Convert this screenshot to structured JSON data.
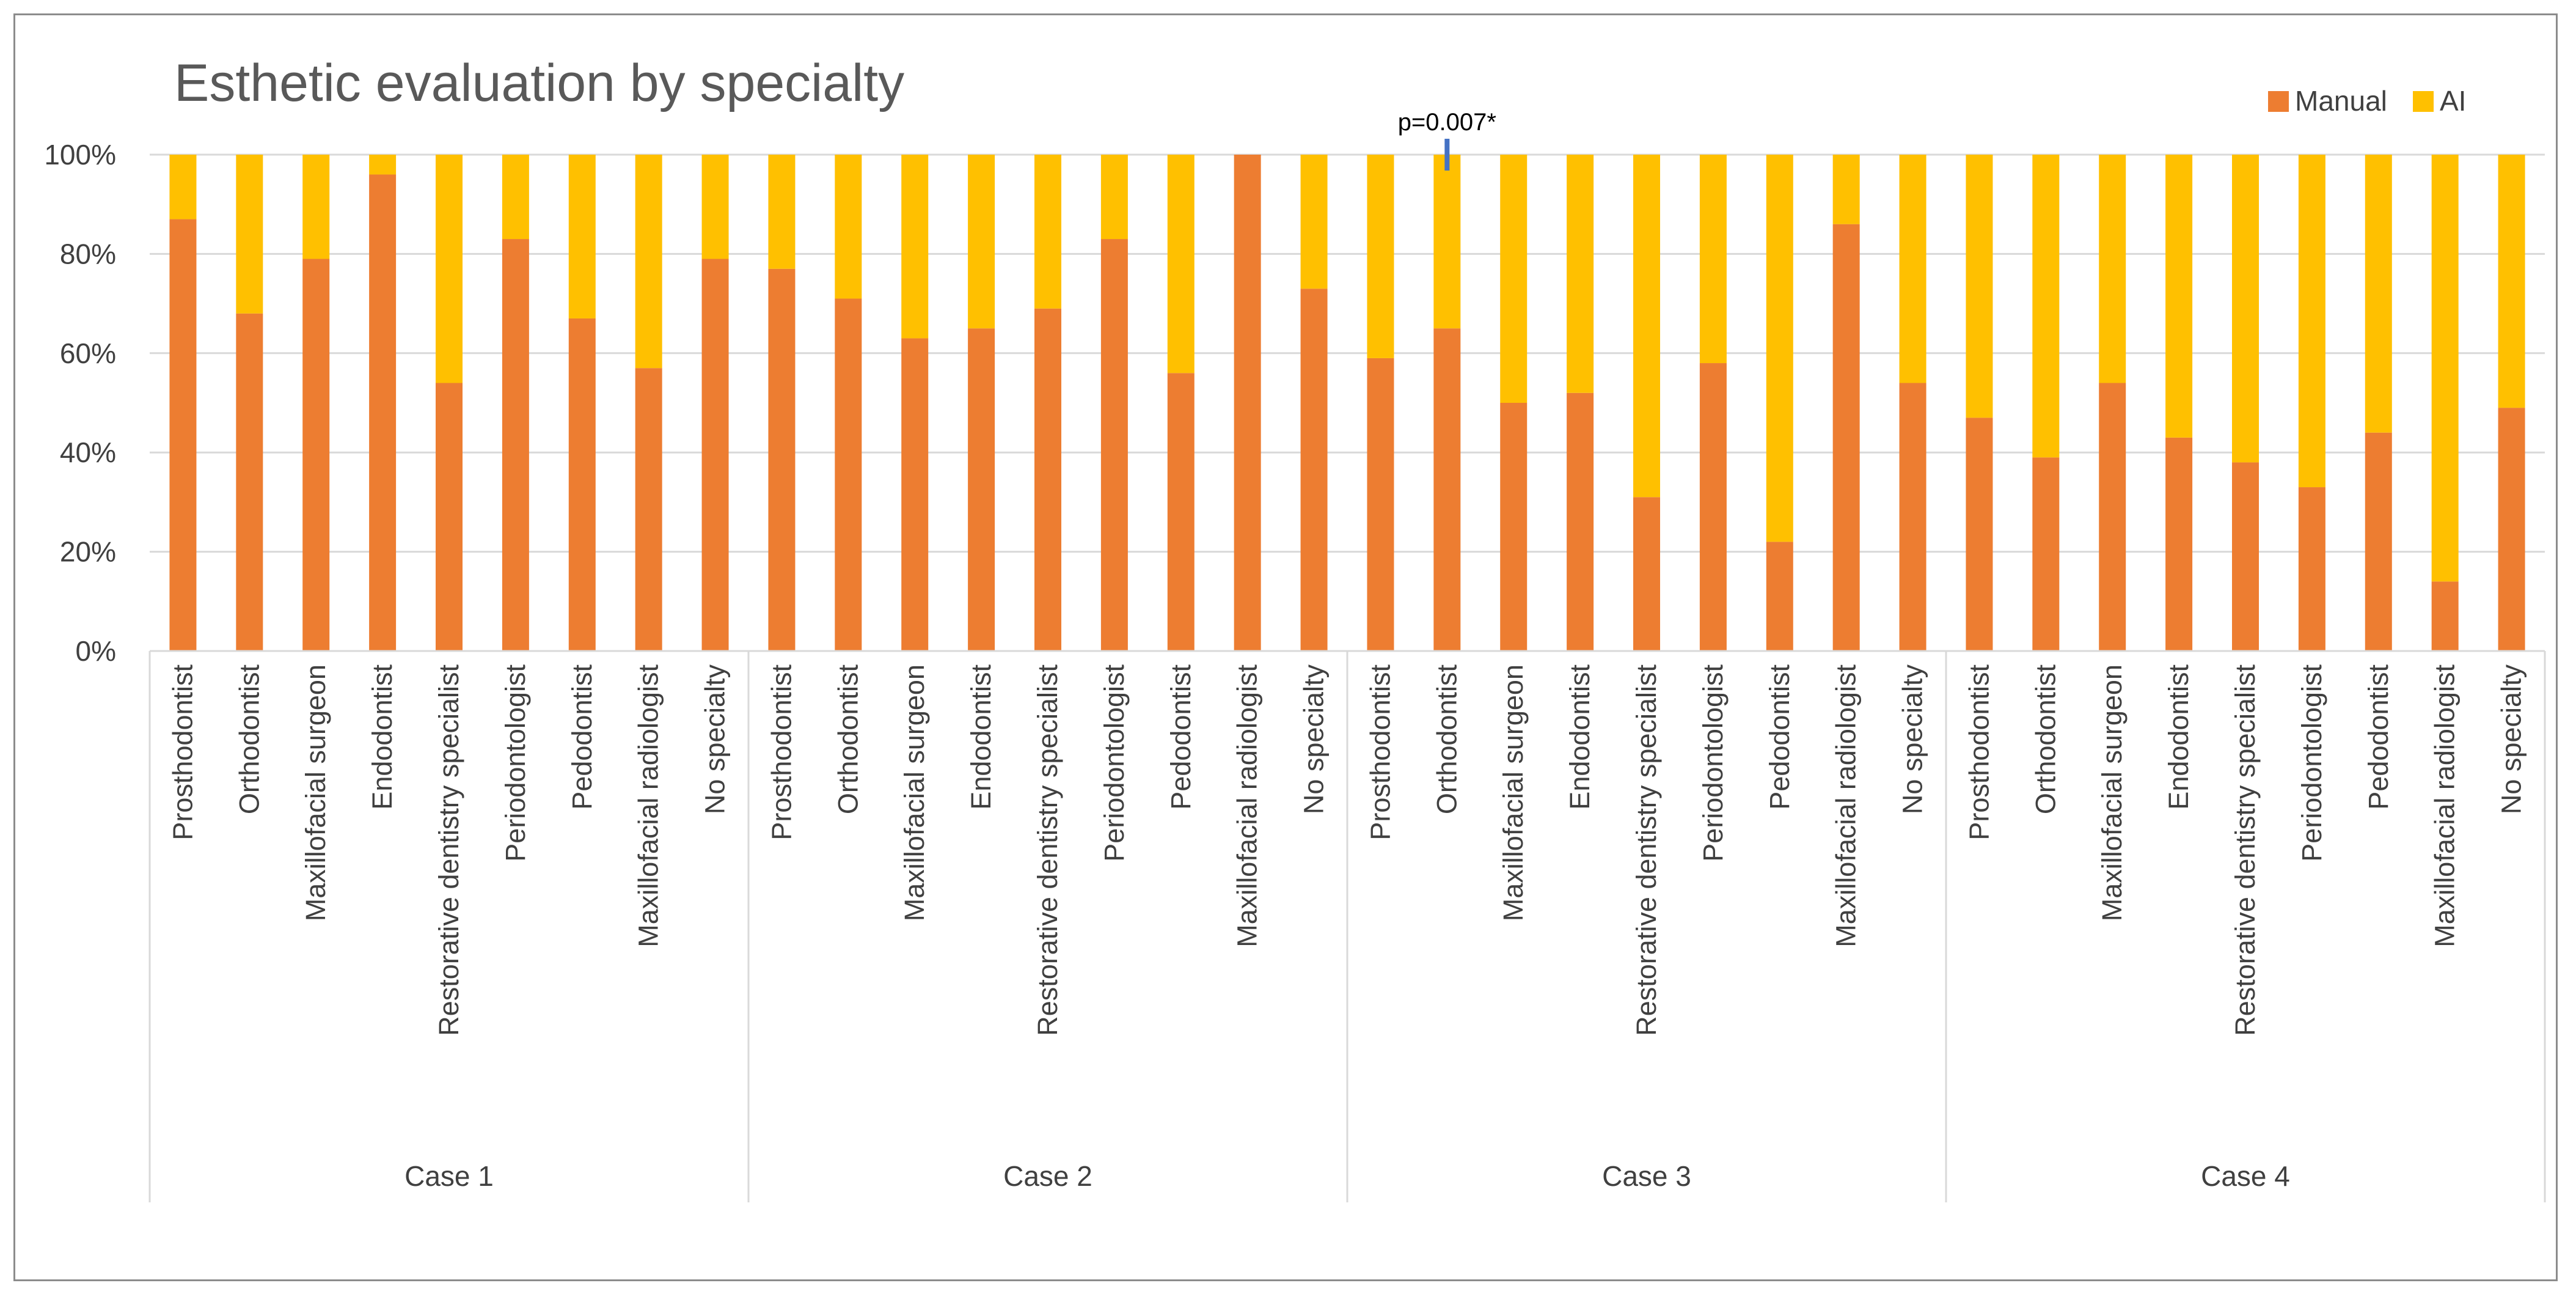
{
  "chart_data": {
    "type": "bar",
    "stacked": true,
    "title": "Esthetic evaluation by specialty",
    "ylim": [
      0,
      100
    ],
    "yticks": [
      "0%",
      "20%",
      "40%",
      "60%",
      "80%",
      "100%"
    ],
    "grid": true,
    "legend_position": "top-right",
    "colors": {
      "Manual": "#ED7D31",
      "AI": "#FFC000",
      "annotation_marker": "#4472C4"
    },
    "groups": [
      {
        "label": "Case 1",
        "categories": [
          "Prosthodontist",
          "Orthodontist",
          "Maxillofacial surgeon",
          "Endodontist",
          "Restorative dentistry specialist",
          "Periodontologist",
          "Pedodontist",
          "Maxillofacial radiologist",
          "No specialty"
        ],
        "manual": [
          87,
          68,
          79,
          96,
          54,
          83,
          67,
          57,
          79
        ]
      },
      {
        "label": "Case 2",
        "categories": [
          "Prosthodontist",
          "Orthodontist",
          "Maxillofacial surgeon",
          "Endodontist",
          "Restorative dentistry specialist",
          "Periodontologist",
          "Pedodontist",
          "Maxillofacial radiologist",
          "No specialty"
        ],
        "manual": [
          77,
          71,
          63,
          65,
          69,
          83,
          56,
          100,
          73
        ]
      },
      {
        "label": "Case 3",
        "categories": [
          "Prosthodontist",
          "Orthodontist",
          "Maxillofacial surgeon",
          "Endodontist",
          "Restorative dentistry specialist",
          "Periodontologist",
          "Pedodontist",
          "Maxillofacial radiologist",
          "No specialty"
        ],
        "manual": [
          59,
          65,
          50,
          52,
          31,
          58,
          22,
          86,
          54
        ]
      },
      {
        "label": "Case 4",
        "categories": [
          "Prosthodontist",
          "Orthodontist",
          "Maxillofacial surgeon",
          "Endodontist",
          "Restorative dentistry specialist",
          "Periodontologist",
          "Pedodontist",
          "Maxillofacial radiologist",
          "No specialty"
        ],
        "manual": [
          47,
          39,
          54,
          43,
          38,
          33,
          44,
          14,
          49
        ]
      }
    ],
    "series": [
      {
        "name": "Manual"
      },
      {
        "name": "AI"
      }
    ],
    "annotations": [
      {
        "text": "p=0.007*",
        "group": 2,
        "category": 1
      }
    ]
  }
}
